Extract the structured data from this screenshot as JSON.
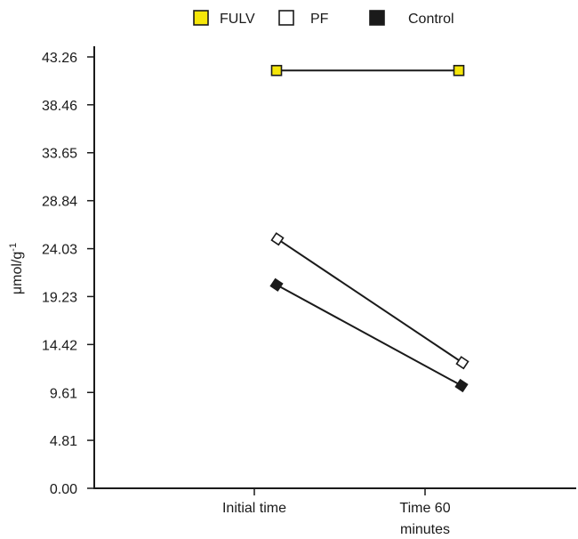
{
  "chart_data": {
    "type": "line",
    "categories": [
      "Initial time",
      "Time 60 minutes"
    ],
    "category_lines": [
      [
        "Initial time"
      ],
      [
        "Time 60",
        "minutes"
      ]
    ],
    "ylabel": "μmol/g",
    "ylabel_superscript": "-1",
    "yticks": [
      "0.00",
      "4.81",
      "9.61",
      "14.42",
      "19.23",
      "24.03",
      "28.84",
      "33.65",
      "38.46",
      "43.26"
    ],
    "ylim": [
      0,
      43.26
    ],
    "grid": false,
    "legend_position": "top",
    "series": [
      {
        "name": "FULV",
        "values": [
          41.9,
          41.9
        ],
        "marker": "square",
        "fill": "#f5e60a",
        "stroke": "#1a1a1a"
      },
      {
        "name": "PF",
        "values": [
          25.0,
          12.6
        ],
        "marker": "diamond",
        "fill": "#ffffff",
        "stroke": "#1a1a1a"
      },
      {
        "name": "Control",
        "values": [
          20.4,
          10.3
        ],
        "marker": "diamond",
        "fill": "#1a1a1a",
        "stroke": "#1a1a1a"
      }
    ]
  }
}
